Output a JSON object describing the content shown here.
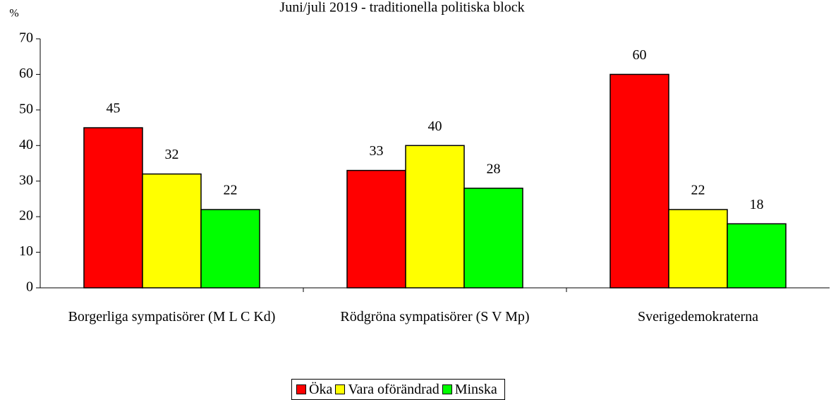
{
  "chart_data": {
    "type": "bar",
    "title": "Juni/juli 2019 - traditionella politiska block",
    "y_label": "%",
    "categories": [
      "Borgerliga sympatisörer (M L C Kd)",
      "Rödgröna sympatisörer (S V Mp)",
      "Sverigedemokraterna"
    ],
    "series": [
      {
        "name": "Öka",
        "color": "#ff0000",
        "values": [
          45,
          33,
          60
        ]
      },
      {
        "name": "Vara oförändrad",
        "color": "#ffff00",
        "values": [
          32,
          40,
          22
        ]
      },
      {
        "name": "Minska",
        "color": "#00ff00",
        "values": [
          22,
          28,
          18
        ]
      }
    ],
    "ylim": [
      0,
      70
    ],
    "yticks": [
      0,
      10,
      20,
      30,
      40,
      50,
      60,
      70
    ],
    "grid": false,
    "legend": "bottom"
  }
}
